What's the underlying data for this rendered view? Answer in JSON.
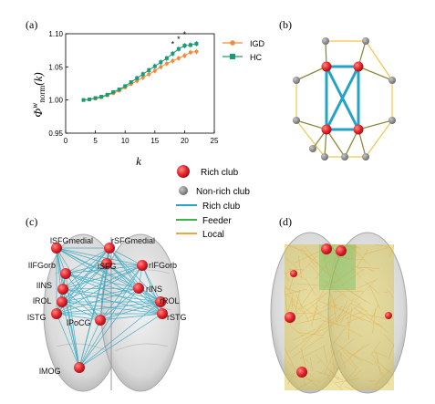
{
  "panel_labels": {
    "a": "(a)",
    "b": "(b)",
    "c": "(c)",
    "d": "(d)"
  },
  "chart_data": {
    "type": "line",
    "title": "",
    "xlabel": "k",
    "ylabel": "Φw norm (k)",
    "ylabel_main": "Φ",
    "ylabel_sup": "w",
    "ylabel_sub": "norm",
    "ylabel_arg": "(k)",
    "xlim": [
      0,
      25
    ],
    "ylim": [
      0.95,
      1.1
    ],
    "xticks": [
      0,
      5,
      10,
      15,
      20,
      25
    ],
    "yticks": [
      0.95,
      1.0,
      1.05,
      1.1
    ],
    "ytick_labels": [
      "0.95",
      "1.00",
      "1.05",
      "1.10"
    ],
    "grid": false,
    "legend_position": "top-right",
    "x": [
      3,
      4,
      5,
      6,
      7,
      8,
      9,
      10,
      11,
      12,
      13,
      14,
      15,
      16,
      17,
      18,
      19,
      20,
      21,
      22
    ],
    "series": [
      {
        "name": "IGD",
        "color": "#f08a3c",
        "marker": "circle",
        "values": [
          1.0,
          1.001,
          1.002,
          1.004,
          1.007,
          1.01,
          1.014,
          1.019,
          1.024,
          1.029,
          1.034,
          1.039,
          1.044,
          1.05,
          1.055,
          1.059,
          1.063,
          1.067,
          1.072,
          1.073
        ]
      },
      {
        "name": "HC",
        "color": "#1a9b78",
        "marker": "square",
        "values": [
          1.0,
          1.001,
          1.003,
          1.005,
          1.008,
          1.012,
          1.016,
          1.021,
          1.027,
          1.033,
          1.039,
          1.045,
          1.051,
          1.057,
          1.063,
          1.07,
          1.077,
          1.082,
          1.083,
          1.085
        ]
      }
    ],
    "annotations": [
      {
        "x": 18,
        "y": 1.077,
        "text": "*"
      },
      {
        "x": 19,
        "y": 1.085,
        "text": "*"
      },
      {
        "x": 20,
        "y": 1.092,
        "text": "*"
      }
    ]
  },
  "legend": {
    "items": [
      {
        "label": "Rich club",
        "kind": "big-node",
        "color": "#e8262e"
      },
      {
        "label": "Non-rich club",
        "kind": "small-node",
        "color": "#8c8c8c"
      },
      {
        "label": "Rich club",
        "kind": "line",
        "color": "#24a3c6"
      },
      {
        "label": "Feeder",
        "kind": "line",
        "color": "#3cb44a"
      },
      {
        "label": "Local",
        "kind": "line",
        "color": "#f2a33a"
      }
    ]
  },
  "brain_labels": {
    "left": [
      "lSFGmedial",
      "lIFGorb",
      "lINS",
      "lROL",
      "lSTG",
      "lMOG"
    ],
    "right": [
      "rSFGmedial",
      "rIFGorb",
      "rINS",
      "rROL",
      "rSTG"
    ],
    "center": [
      "lSFG",
      "lPoCG"
    ]
  }
}
